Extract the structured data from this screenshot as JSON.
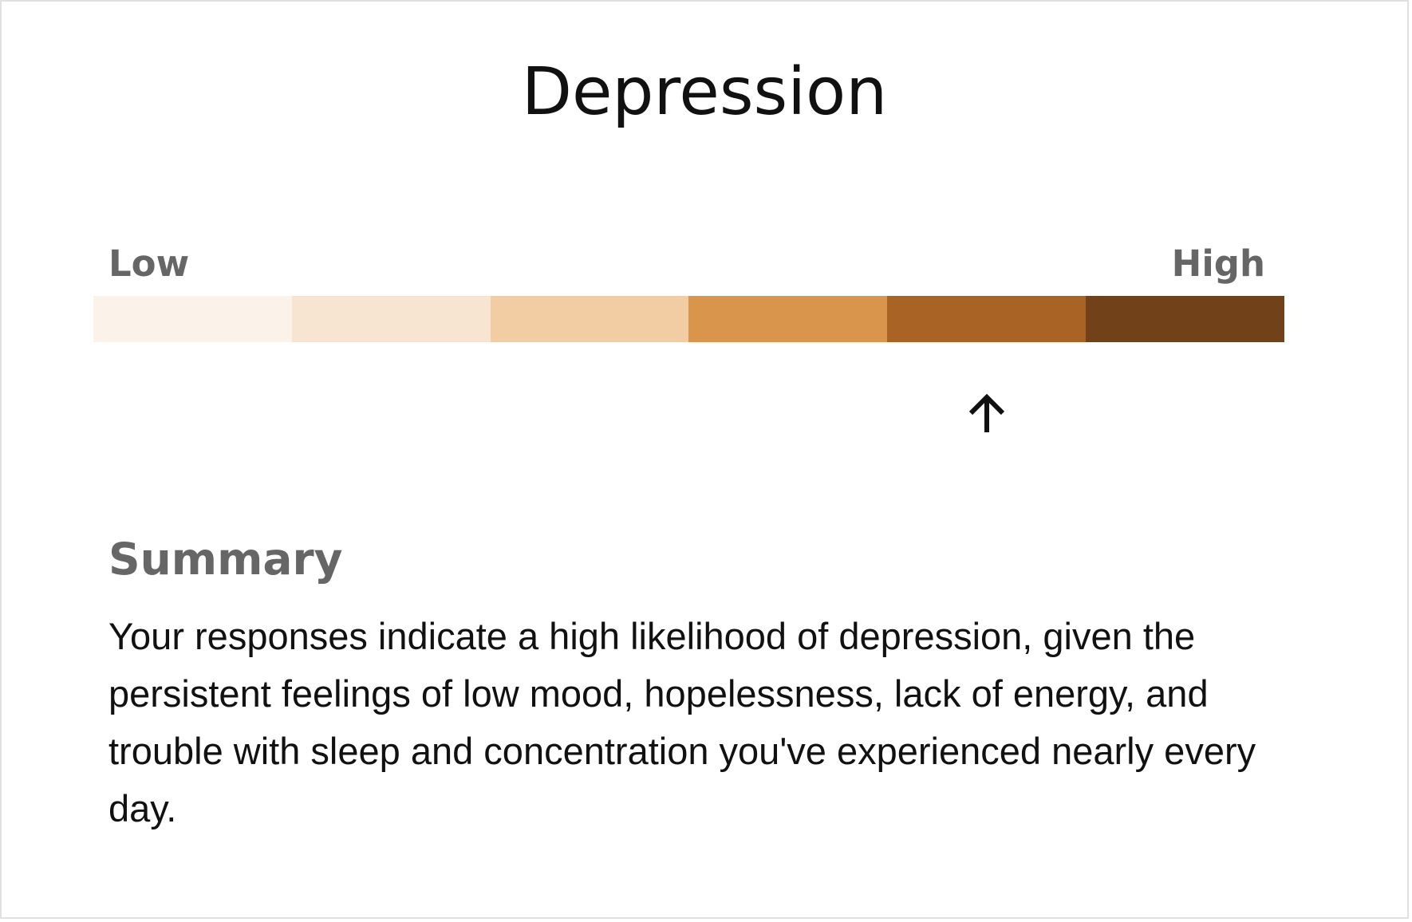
{
  "title": "Depression",
  "scale": {
    "low_label": "Low",
    "high_label": "High",
    "segment_colors": [
      "#FBF3EA",
      "#F7E5D2",
      "#F2CDA4",
      "#D9954C",
      "#A86325",
      "#71421A"
    ],
    "selected_level": 5,
    "level_count": 6,
    "marker_icon": "up-arrow-icon"
  },
  "summary": {
    "heading": "Summary",
    "text": "Your responses indicate a high likelihood of depression, given the persistent feelings of low mood, hopelessness, lack of energy, and trouble with sleep and concentration you've experienced nearly every day."
  }
}
